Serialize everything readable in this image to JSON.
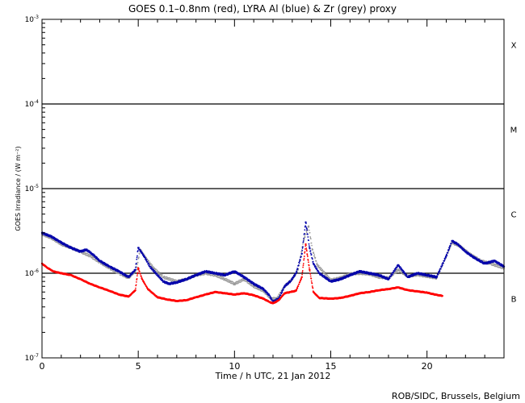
{
  "chart_data": {
    "type": "scatter",
    "title": "GOES 0.1–0.8nm (red), LYRA Al (blue) & Zr (grey) proxy",
    "xlabel": "Time / h UTC, 21 Jan 2012",
    "ylabel": "GOES Irradiance / (W m⁻²)",
    "xlim": [
      0,
      24
    ],
    "ylim": [
      1e-07,
      0.001
    ],
    "yscale": "log",
    "x_ticks": [
      0,
      5,
      10,
      15,
      20
    ],
    "y_ticks": [
      {
        "value": 1e-07,
        "base": "10",
        "exp": "-7"
      },
      {
        "value": 1e-06,
        "base": "10",
        "exp": "-6"
      },
      {
        "value": 1e-05,
        "base": "10",
        "exp": "-5"
      },
      {
        "value": 0.0001,
        "base": "10",
        "exp": "-4"
      },
      {
        "value": 0.001,
        "base": "10",
        "exp": "-3"
      }
    ],
    "class_lines": [
      1e-06,
      1e-05,
      0.0001
    ],
    "class_labels": [
      {
        "label": "X",
        "y": 0.0005
      },
      {
        "label": "M",
        "y": 5e-05
      },
      {
        "label": "C",
        "y": 5e-06
      },
      {
        "label": "B",
        "y": 5e-07
      }
    ],
    "grid": false,
    "series": [
      {
        "name": "GOES 0.1–0.8nm",
        "color": "#ff0000",
        "x": [
          0,
          0.3,
          0.6,
          1,
          1.5,
          2,
          2.5,
          3,
          3.5,
          4,
          4.5,
          4.85,
          5,
          5.2,
          5.5,
          6,
          6.5,
          7,
          7.5,
          8,
          8.5,
          9,
          9.5,
          10,
          10.5,
          11,
          11.5,
          11.8,
          12,
          12.3,
          12.6,
          12.9,
          13.2,
          13.5,
          13.7,
          13.9,
          14.1,
          14.4,
          15,
          15.5,
          16,
          16.5,
          17,
          17.5,
          18,
          18.5,
          19,
          19.5,
          20,
          20.4,
          20.8
        ],
        "y": [
          1.3e-06,
          1.15e-06,
          1.05e-06,
          1e-06,
          9.5e-07,
          8.5e-07,
          7.5e-07,
          6.8e-07,
          6.2e-07,
          5.6e-07,
          5.3e-07,
          6.3e-07,
          1.15e-06,
          8.5e-07,
          6.5e-07,
          5.2e-07,
          4.9e-07,
          4.7e-07,
          4.8e-07,
          5.2e-07,
          5.6e-07,
          6e-07,
          5.8e-07,
          5.6e-07,
          5.8e-07,
          5.5e-07,
          5e-07,
          4.6e-07,
          4.4e-07,
          4.8e-07,
          5.8e-07,
          6e-07,
          6.2e-07,
          9e-07,
          2.2e-06,
          1.1e-06,
          6e-07,
          5.1e-07,
          5e-07,
          5.1e-07,
          5.4e-07,
          5.8e-07,
          6e-07,
          6.3e-07,
          6.5e-07,
          6.8e-07,
          6.3e-07,
          6.1e-07,
          5.9e-07,
          5.6e-07,
          5.4e-07
        ]
      },
      {
        "name": "LYRA Al proxy",
        "color": "#0000aa",
        "x": [
          0,
          0.5,
          1,
          1.5,
          2,
          2.3,
          2.6,
          3,
          3.5,
          4,
          4.5,
          4.85,
          5,
          5.3,
          5.6,
          6,
          6.3,
          6.6,
          7,
          7.5,
          8,
          8.5,
          9,
          9.5,
          10,
          10.5,
          11,
          11.5,
          11.8,
          12,
          12.3,
          12.6,
          12.9,
          13.2,
          13.5,
          13.7,
          13.9,
          14.1,
          14.4,
          15,
          15.5,
          16,
          16.5,
          17,
          17.5,
          18,
          18.5,
          19,
          19.5,
          20,
          20.5,
          21,
          21.3,
          21.6,
          22,
          22.5,
          23,
          23.5,
          24
        ],
        "y": [
          3e-06,
          2.7e-06,
          2.3e-06,
          2e-06,
          1.8e-06,
          1.9e-06,
          1.7e-06,
          1.4e-06,
          1.2e-06,
          1.05e-06,
          9e-07,
          1.1e-06,
          2e-06,
          1.6e-06,
          1.2e-06,
          9.5e-07,
          8e-07,
          7.5e-07,
          7.8e-07,
          8.5e-07,
          9.5e-07,
          1.05e-06,
          1e-06,
          9.5e-07,
          1.05e-06,
          9e-07,
          7.5e-07,
          6.5e-07,
          5.5e-07,
          4.6e-07,
          5e-07,
          7e-07,
          8e-07,
          1e-06,
          1.7e-06,
          4e-06,
          2e-06,
          1.3e-06,
          1e-06,
          8e-07,
          8.5e-07,
          9.5e-07,
          1.05e-06,
          1e-06,
          9.5e-07,
          8.5e-07,
          1.25e-06,
          9e-07,
          1e-06,
          9.5e-07,
          9e-07,
          1.6e-06,
          2.4e-06,
          2.2e-06,
          1.8e-06,
          1.5e-06,
          1.3e-06,
          1.4e-06,
          1.2e-06
        ]
      },
      {
        "name": "LYRA Zr proxy",
        "color": "#999999",
        "x": [
          0,
          0.5,
          1,
          1.5,
          2,
          2.5,
          3,
          3.5,
          4,
          4.5,
          4.9,
          5.1,
          5.4,
          5.8,
          6.3,
          7,
          7.5,
          8,
          8.5,
          9,
          9.5,
          10,
          10.5,
          11,
          11.5,
          11.9,
          12.2,
          12.6,
          13,
          13.3,
          13.6,
          13.85,
          14.05,
          14.3,
          15,
          15.5,
          16,
          16.5,
          17,
          17.5,
          18,
          18.5,
          19,
          19.5,
          20,
          20.5,
          21,
          21.3,
          21.7,
          22.2,
          22.8,
          23.3,
          24
        ],
        "y": [
          2.9e-06,
          2.6e-06,
          2.2e-06,
          2e-06,
          1.8e-06,
          1.6e-06,
          1.35e-06,
          1.15e-06,
          1e-06,
          8.8e-07,
          1.1e-06,
          1.9e-06,
          1.5e-06,
          1.15e-06,
          9e-07,
          8e-07,
          8.5e-07,
          9.5e-07,
          1e-06,
          9.5e-07,
          8.5e-07,
          7.5e-07,
          8.5e-07,
          7e-07,
          6.2e-07,
          5e-07,
          5e-07,
          7e-07,
          8.5e-07,
          1.1e-06,
          2.5e-06,
          3.6e-06,
          1.9e-06,
          1.25e-06,
          8.3e-07,
          8.8e-07,
          9.8e-07,
          1e-06,
          9.8e-07,
          9e-07,
          8.8e-07,
          1.1e-06,
          9.2e-07,
          9.6e-07,
          9.2e-07,
          8.8e-07,
          1.6e-06,
          2.3e-06,
          2.1e-06,
          1.7e-06,
          1.4e-06,
          1.3e-06,
          1.15e-06
        ]
      }
    ]
  },
  "footer": "ROB/SIDC, Brussels, Belgium"
}
